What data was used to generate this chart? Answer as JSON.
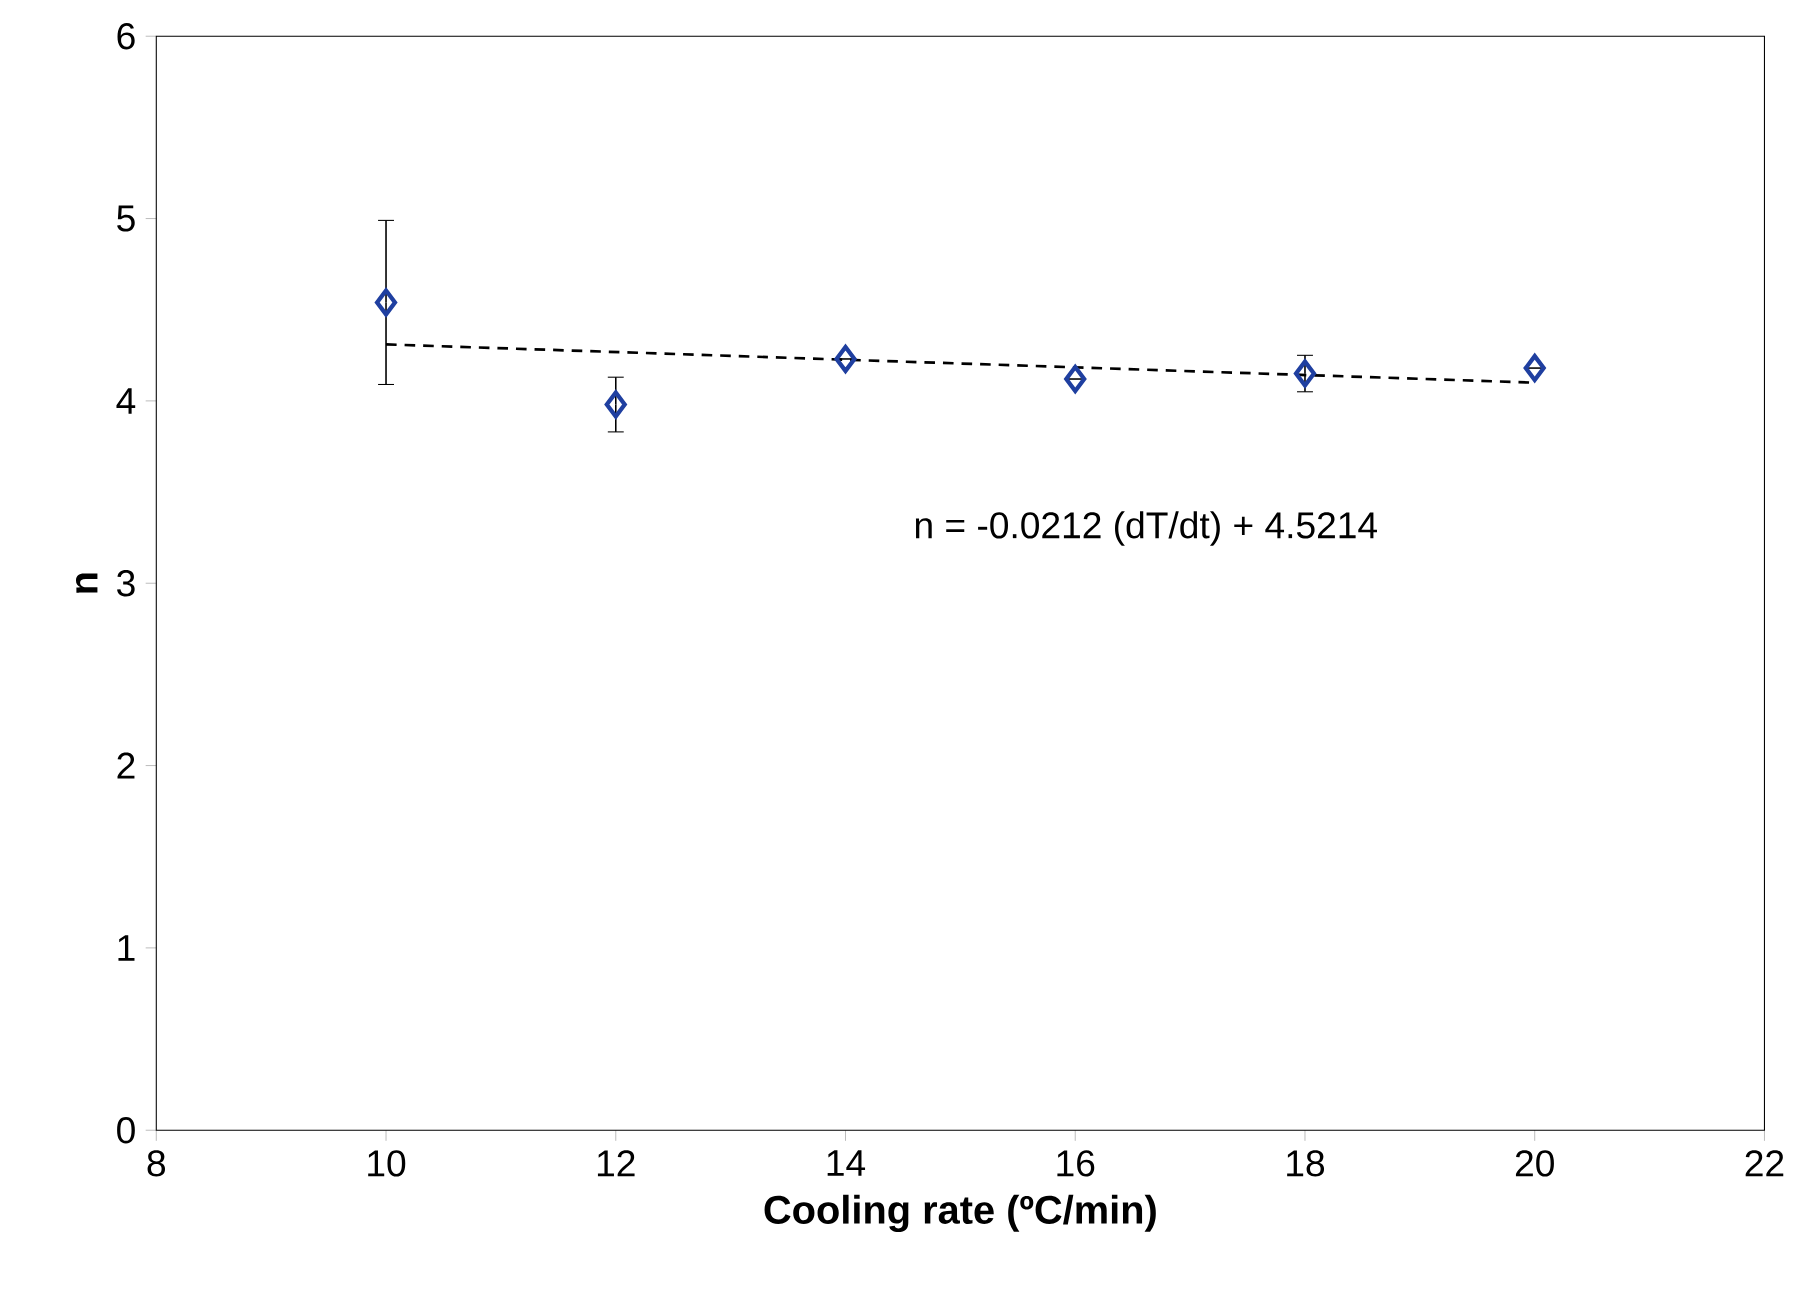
{
  "chart_data": {
    "type": "scatter",
    "xlabel": "Cooling rate (ºC/min)",
    "ylabel": "n",
    "xlim": [
      8,
      22
    ],
    "ylim": [
      0,
      6
    ],
    "xticks": [
      8,
      10,
      12,
      14,
      16,
      18,
      20,
      22
    ],
    "yticks": [
      0,
      1,
      2,
      3,
      4,
      5,
      6
    ],
    "grid": false,
    "series": [
      {
        "marker": "diamond",
        "color": "#1f3fa0",
        "x": [
          10,
          12,
          14,
          16,
          18,
          20
        ],
        "values": [
          4.54,
          3.98,
          4.23,
          4.12,
          4.15,
          4.18
        ],
        "errors": [
          0.45,
          0.15,
          null,
          null,
          0.1,
          null
        ]
      },
      {
        "type": "line",
        "color": "#000000",
        "line_style": "dashed",
        "x": [
          10,
          20
        ],
        "values": [
          4.31,
          4.1
        ]
      }
    ],
    "annotations": [
      "n = -0.0212 (dT/dt) + 4.5214"
    ]
  }
}
